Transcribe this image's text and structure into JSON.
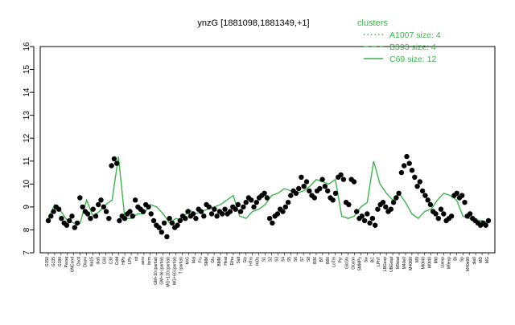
{
  "chart_data": {
    "type": "line",
    "title": "ynzG [1881098,1881349,+1]",
    "ylim": [
      7,
      16
    ],
    "yticks": [
      7,
      8,
      9,
      10,
      11,
      12,
      13,
      14,
      15,
      16
    ],
    "xlabels_visible": [
      "G150",
      "G135",
      "G180",
      "Paraq",
      "UNCond",
      "Oxctl",
      "Diami",
      "dia15",
      "dia5",
      "C60",
      "C30",
      "Cold",
      "HPh",
      "LPh",
      "nit",
      "aero",
      "ferm",
      "GM+10 (partial)",
      "GM+Ile (partial)",
      "MG+120 (partial)",
      "MG+60 (partial)",
      "T (partial)",
      "M/G",
      "Mal",
      "Fru",
      "SMM",
      "Glu",
      "BMM",
      "Heat",
      "Etha",
      "Salt",
      "Gly",
      "HTm",
      "HiOs",
      "S1",
      "S2",
      "S3",
      "S4",
      "S5",
      "S6",
      "S7",
      "S8",
      "B36",
      "BT",
      "B80",
      "LoTm",
      "Pyr",
      "GlcGln",
      "Glucon",
      "SMMPy",
      "Sw",
      "BC",
      "LPhT",
      "LBGexp",
      "UBGstat",
      "M9stat",
      "M40e0",
      "M40t90",
      "M9",
      "Mt0t40",
      "M0t40",
      "Mt0",
      "Lbexp",
      "M9exp",
      "BI",
      "Sp",
      "M40e90",
      "dia0",
      "MD",
      "MG"
    ],
    "legend": {
      "title": "clusters",
      "position": "top-right",
      "entries": [
        {
          "name": "A1007 size: 4",
          "style": "dotted"
        },
        {
          "name": "B393 size: 4",
          "style": "dashed"
        },
        {
          "name": "C69 size: 12",
          "style": "solid"
        }
      ]
    },
    "colors": {
      "line": "#3cb44b",
      "points": "#000000"
    },
    "series": [
      {
        "name": "C69 size: 12",
        "values": [
          8.5,
          9.1,
          8.8,
          8.4,
          8.3,
          8.3,
          9.3,
          8.6,
          8.8,
          9.1,
          9.3,
          11.2,
          8.5,
          8.5,
          8.7,
          8.7,
          9.1,
          9.0,
          8.7,
          8.3,
          8.5,
          8.4,
          8.9,
          8.7,
          8.8,
          8.9,
          9.0,
          9.1,
          9.3,
          9.5,
          8.6,
          8.5,
          8.8,
          8.9,
          9.1,
          9.5,
          9.6,
          9.8,
          9.7,
          9.6,
          9.7,
          9.9,
          10.2,
          10.1,
          10.0,
          10.2,
          8.6,
          8.5,
          8.6,
          9.0,
          9.2,
          11.0,
          10.0,
          9.6,
          9.3,
          9.6,
          9.2,
          8.7,
          8.5,
          8.8,
          8.9,
          9.3,
          9.6,
          9.5,
          9.3,
          8.6,
          8.5,
          8.4,
          8.4,
          8.3
        ]
      }
    ],
    "points": [
      8.4,
      8.6,
      8.8,
      9.0,
      8.9,
      8.5,
      8.3,
      8.2,
      8.4,
      8.6,
      8.1,
      8.3,
      9.4,
      9.0,
      8.8,
      8.7,
      8.5,
      8.9,
      8.6,
      9.1,
      9.3,
      9.0,
      8.8,
      8.5,
      10.8,
      11.1,
      10.9,
      8.4,
      8.6,
      8.5,
      8.7,
      8.8,
      8.6,
      9.3,
      9.0,
      8.9,
      8.8,
      9.1,
      9.0,
      8.7,
      8.4,
      8.2,
      8.1,
      7.9,
      8.3,
      7.7,
      8.5,
      8.3,
      8.1,
      8.2,
      8.4,
      8.6,
      8.5,
      8.8,
      8.6,
      8.7,
      8.5,
      8.9,
      8.8,
      8.6,
      9.1,
      9.0,
      8.7,
      8.9,
      8.6,
      8.8,
      8.7,
      8.9,
      8.7,
      8.8,
      9.0,
      8.9,
      9.1,
      8.8,
      9.0,
      9.2,
      9.4,
      9.3,
      9.0,
      9.2,
      9.4,
      9.5,
      9.6,
      9.4,
      8.5,
      8.3,
      8.6,
      8.7,
      8.9,
      8.8,
      9.0,
      9.2,
      9.5,
      9.7,
      9.6,
      9.8,
      10.3,
      9.9,
      10.1,
      9.7,
      9.5,
      9.4,
      9.7,
      9.8,
      10.2,
      9.9,
      9.7,
      9.4,
      9.3,
      9.6,
      10.3,
      10.4,
      10.2,
      9.2,
      9.1,
      10.2,
      10.1,
      8.8,
      8.5,
      8.6,
      8.4,
      8.7,
      8.3,
      8.5,
      8.2,
      8.9,
      9.1,
      9.2,
      9.0,
      8.8,
      8.9,
      9.2,
      9.4,
      9.6,
      10.5,
      10.8,
      11.2,
      10.9,
      10.6,
      10.3,
      9.9,
      10.1,
      9.7,
      9.5,
      9.3,
      9.1,
      8.8,
      8.7,
      8.5,
      8.9,
      8.7,
      8.4,
      8.5,
      8.6,
      9.5,
      9.6,
      9.4,
      9.5,
      9.2,
      8.6,
      8.7,
      8.5,
      8.4,
      8.3,
      8.2,
      8.3,
      8.2,
      8.4
    ]
  }
}
